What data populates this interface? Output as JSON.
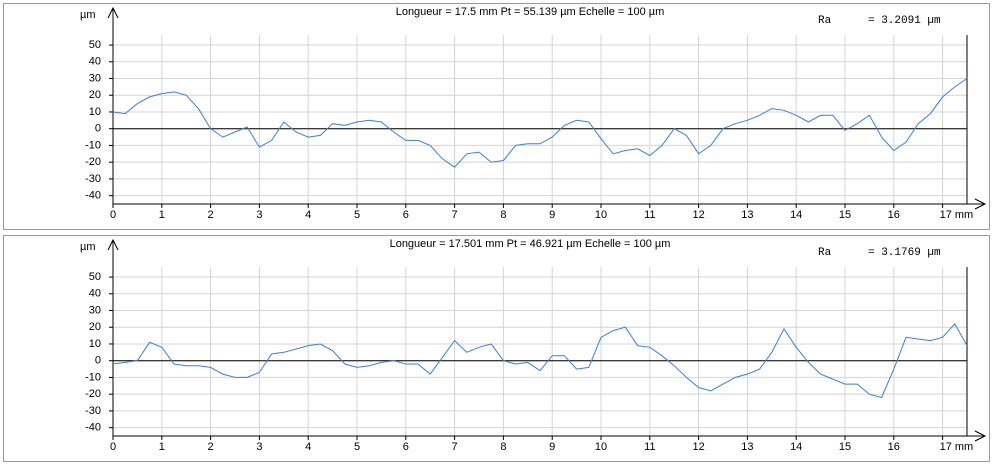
{
  "chart_data": [
    {
      "type": "line",
      "title": "Longueur = 17.5 mm  Pt = 55.139 µm  Echelle = 100 µm",
      "unit_label": "µm",
      "ra_label": "Ra",
      "ra_value": "= 3.2091 µm",
      "x": [
        0,
        0.25,
        0.5,
        0.75,
        1,
        1.25,
        1.5,
        1.75,
        2,
        2.25,
        2.5,
        2.75,
        3,
        3.25,
        3.5,
        3.75,
        4,
        4.25,
        4.5,
        4.75,
        5,
        5.25,
        5.5,
        5.75,
        6,
        6.25,
        6.5,
        6.75,
        7,
        7.25,
        7.5,
        7.75,
        8,
        8.25,
        8.5,
        8.75,
        9,
        9.25,
        9.5,
        9.75,
        10,
        10.25,
        10.5,
        10.75,
        11,
        11.25,
        11.5,
        11.75,
        12,
        12.25,
        12.5,
        12.75,
        13,
        13.25,
        13.5,
        13.75,
        14,
        14.25,
        14.5,
        14.75,
        15,
        15.25,
        15.5,
        15.75,
        16,
        16.25,
        16.5,
        16.75,
        17,
        17.25,
        17.5
      ],
      "series": [
        {
          "color": "#3c7fd6",
          "values": [
            10,
            9,
            15,
            19,
            21,
            22,
            20,
            12,
            0,
            -5,
            -2,
            1,
            -11,
            -7,
            4,
            -2,
            -5,
            -4,
            3,
            2,
            4,
            5,
            4,
            -2,
            -7,
            -7,
            -10,
            -18,
            -23,
            -15,
            -14,
            -20,
            -19,
            -10,
            -9,
            -9,
            -5,
            2,
            5,
            4,
            -6,
            -15,
            -13,
            -12,
            -16,
            -10,
            0,
            -4,
            -15,
            -10,
            0,
            3,
            5,
            8,
            12,
            11,
            8,
            4,
            8,
            8,
            -1,
            3,
            8,
            -5,
            -13,
            -8,
            3,
            9,
            19,
            25,
            30
          ]
        }
      ],
      "xlim": [
        0,
        17.5
      ],
      "ylim": [
        -45,
        56
      ],
      "xticks": [
        0,
        1,
        2,
        3,
        4,
        5,
        6,
        7,
        8,
        9,
        10,
        11,
        12,
        13,
        14,
        15,
        16,
        {
          "value": 17,
          "label": "17 mm"
        }
      ],
      "yticks": [
        -40,
        -30,
        -20,
        -10,
        0,
        10,
        20,
        30,
        40,
        50
      ],
      "grid": true
    },
    {
      "type": "line",
      "title": "Longueur = 17.501 mm  Pt = 46.921 µm  Echelle = 100 µm",
      "unit_label": "µm",
      "ra_label": "Ra",
      "ra_value": "= 3.1769 µm",
      "x": [
        0,
        0.25,
        0.5,
        0.75,
        1,
        1.25,
        1.5,
        1.75,
        2,
        2.25,
        2.5,
        2.75,
        3,
        3.25,
        3.5,
        3.75,
        4,
        4.25,
        4.5,
        4.75,
        5,
        5.25,
        5.5,
        5.75,
        6,
        6.25,
        6.5,
        6.75,
        7,
        7.25,
        7.5,
        7.75,
        8,
        8.25,
        8.5,
        8.75,
        9,
        9.25,
        9.5,
        9.75,
        10,
        10.25,
        10.5,
        10.75,
        11,
        11.25,
        11.5,
        11.75,
        12,
        12.25,
        12.5,
        12.75,
        13,
        13.25,
        13.5,
        13.75,
        14,
        14.25,
        14.5,
        14.75,
        15,
        15.25,
        15.5,
        15.75,
        16,
        16.25,
        16.5,
        16.75,
        17,
        17.25,
        17.5
      ],
      "series": [
        {
          "color": "#3c7fd6",
          "values": [
            -2,
            -1,
            0,
            11,
            8,
            -2,
            -3,
            -3,
            -4,
            -8,
            -10,
            -10,
            -7,
            4,
            5,
            7,
            9,
            10,
            6,
            -2,
            -4,
            -3,
            -1,
            0,
            -2,
            -2,
            -8,
            2,
            12,
            5,
            8,
            10,
            0,
            -2,
            -1,
            -6,
            3,
            3,
            -5,
            -4,
            14,
            18,
            20,
            9,
            8,
            3,
            -3,
            -10,
            -16,
            -18,
            -14,
            -10,
            -8,
            -5,
            5,
            19,
            8,
            -1,
            -8,
            -11,
            -14,
            -14,
            -20,
            -22,
            -5,
            14,
            13,
            12,
            14,
            22,
            9
          ]
        }
      ],
      "xlim": [
        0,
        17.5
      ],
      "ylim": [
        -45,
        56
      ],
      "xticks": [
        0,
        1,
        2,
        3,
        4,
        5,
        6,
        7,
        8,
        9,
        10,
        11,
        12,
        13,
        14,
        15,
        16,
        {
          "value": 17,
          "label": "17 mm"
        }
      ],
      "yticks": [
        -40,
        -30,
        -20,
        -10,
        0,
        10,
        20,
        30,
        40,
        50
      ],
      "grid": true
    }
  ]
}
